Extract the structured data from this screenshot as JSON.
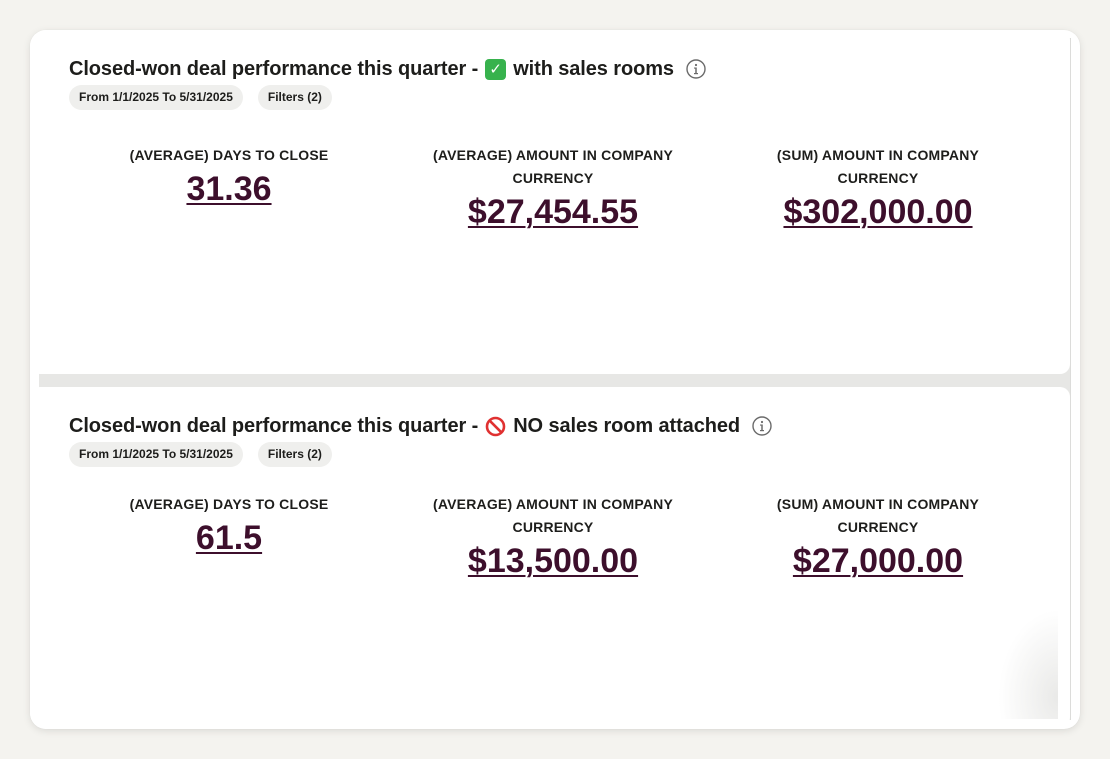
{
  "panels": [
    {
      "title_prefix": "Closed-won deal performance this quarter -",
      "title_suffix": "with sales rooms",
      "emoji": "check-mark-emoji",
      "chips": [
        "From 1/1/2025 To 5/31/2025",
        "Filters (2)"
      ],
      "metrics": [
        {
          "label": "(AVERAGE) DAYS TO CLOSE",
          "value": "31.36"
        },
        {
          "label": "(AVERAGE) AMOUNT IN COMPANY CURRENCY",
          "value": "$27,454.55"
        },
        {
          "label": "(SUM) AMOUNT IN COMPANY CURRENCY",
          "value": "$302,000.00"
        }
      ]
    },
    {
      "title_prefix": "Closed-won deal performance this quarter -",
      "title_suffix": "NO sales room attached",
      "emoji": "prohibited-emoji",
      "chips": [
        "From 1/1/2025 To 5/31/2025",
        "Filters (2)"
      ],
      "metrics": [
        {
          "label": "(AVERAGE) DAYS TO CLOSE",
          "value": "61.5"
        },
        {
          "label": "(AVERAGE) AMOUNT IN COMPANY CURRENCY",
          "value": "$13,500.00"
        },
        {
          "label": "(SUM) AMOUNT IN COMPANY CURRENCY",
          "value": "$27,000.00"
        }
      ]
    }
  ],
  "colors": {
    "metric_value": "#3d0f2c",
    "chip_bg": "#efefed",
    "check_green": "#37b24d",
    "prohibited_red": "#e03131"
  }
}
